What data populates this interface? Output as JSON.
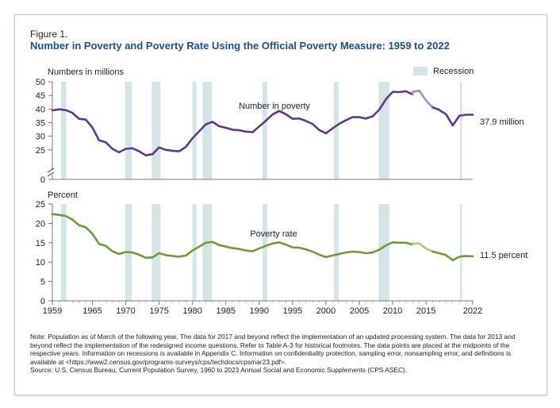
{
  "figure_label": "Figure 1.",
  "title": "Number in Poverty and Poverty Rate Using the Official Poverty Measure: 1959 to 2022",
  "legend": {
    "recession_label": "Recession",
    "recession_color": "#d5e4e6"
  },
  "notes": [
    "Note: Population as of March of the following year. The data for 2017 and beyond reflect the implementation of an updated processing system. The data for 2013 and beyond reflect the implementation of the redesigned income questions. Refer to Table A-3 for historical footnotes. The data points are placed at the midpoints of the respective years. Information on recessions is available in Appendix C. Information on confidentiality protection, sampling error, nonsampling error, and definitions is available at <https://www2.census.gov/programs-surveys/cps/techdocs/cpsmar23.pdf>.",
    "Source: U.S. Census Bureau, Current Population Survey, 1960 to 2023 Annual Social and Economic Supplements (CPS ASEC)."
  ],
  "chart_data": {
    "type": "line",
    "x_ticks": [
      1959,
      1965,
      1970,
      1975,
      1980,
      1985,
      1990,
      1995,
      2000,
      2005,
      2010,
      2015,
      2022
    ],
    "x_range": [
      1959,
      2022
    ],
    "recessions": [
      [
        1960.3,
        1961.1
      ],
      [
        1969.9,
        1970.9
      ],
      [
        1973.9,
        1975.2
      ],
      [
        1980.0,
        1980.6
      ],
      [
        1981.5,
        1982.9
      ],
      [
        1990.5,
        1991.2
      ],
      [
        2001.2,
        2001.9
      ],
      [
        2007.9,
        2009.5
      ],
      [
        2020.1,
        2020.4
      ]
    ],
    "panels": [
      {
        "id": "number",
        "axis_title": "Numbers in millions",
        "series_label": "Number in poverty",
        "end_label": "37.9 million",
        "color": "#5e3a84",
        "light_color": "#a38cc2",
        "y_ticks": [
          0,
          25,
          30,
          35,
          40,
          45,
          50
        ],
        "y_range": [
          20,
          50
        ],
        "axis_break": true,
        "years": [
          1959,
          1960,
          1961,
          1962,
          1963,
          1964,
          1965,
          1966,
          1967,
          1968,
          1969,
          1970,
          1971,
          1972,
          1973,
          1974,
          1975,
          1976,
          1977,
          1978,
          1979,
          1980,
          1981,
          1982,
          1983,
          1984,
          1985,
          1986,
          1987,
          1988,
          1989,
          1990,
          1991,
          1992,
          1993,
          1994,
          1995,
          1996,
          1997,
          1998,
          1999,
          2000,
          2001,
          2002,
          2003,
          2004,
          2005,
          2006,
          2007,
          2008,
          2009,
          2010,
          2011,
          2012,
          2013,
          2013,
          2014,
          2015,
          2016,
          2017,
          2017,
          2018,
          2019,
          2020,
          2021,
          2022
        ],
        "values": [
          39.5,
          39.9,
          39.6,
          38.6,
          36.4,
          36.1,
          33.2,
          28.5,
          27.8,
          25.4,
          24.1,
          25.4,
          25.6,
          24.5,
          23.0,
          23.4,
          25.9,
          25.0,
          24.7,
          24.5,
          26.1,
          29.3,
          31.8,
          34.4,
          35.3,
          33.7,
          33.1,
          32.4,
          32.2,
          31.7,
          31.5,
          33.6,
          35.7,
          38.0,
          39.3,
          38.1,
          36.4,
          36.5,
          35.6,
          34.5,
          32.3,
          31.1,
          32.9,
          34.6,
          35.9,
          37.0,
          37.0,
          36.5,
          37.3,
          39.8,
          43.6,
          46.3,
          46.2,
          46.5,
          45.3,
          46.3,
          46.7,
          43.1,
          40.6,
          39.7,
          39.6,
          38.1,
          34.0,
          37.5,
          37.9,
          37.9
        ],
        "light_segments": [
          [
            54,
            58
          ]
        ]
      },
      {
        "id": "rate",
        "axis_title": "Percent",
        "series_label": "Poverty rate",
        "end_label": "11.5 percent",
        "color": "#6f9a3c",
        "light_color": "#aac886",
        "y_ticks": [
          0,
          5,
          10,
          15,
          20,
          25
        ],
        "y_range": [
          0,
          25
        ],
        "axis_break": false,
        "years": [
          1959,
          1960,
          1961,
          1962,
          1963,
          1964,
          1965,
          1966,
          1967,
          1968,
          1969,
          1970,
          1971,
          1972,
          1973,
          1974,
          1975,
          1976,
          1977,
          1978,
          1979,
          1980,
          1981,
          1982,
          1983,
          1984,
          1985,
          1986,
          1987,
          1988,
          1989,
          1990,
          1991,
          1992,
          1993,
          1994,
          1995,
          1996,
          1997,
          1998,
          1999,
          2000,
          2001,
          2002,
          2003,
          2004,
          2005,
          2006,
          2007,
          2008,
          2009,
          2010,
          2011,
          2012,
          2013,
          2013,
          2014,
          2015,
          2016,
          2017,
          2017,
          2018,
          2019,
          2020,
          2021,
          2022
        ],
        "values": [
          22.4,
          22.2,
          21.9,
          21.0,
          19.5,
          19.0,
          17.3,
          14.7,
          14.2,
          12.8,
          12.1,
          12.6,
          12.5,
          11.9,
          11.1,
          11.2,
          12.3,
          11.8,
          11.6,
          11.4,
          11.7,
          13.0,
          14.0,
          15.0,
          15.2,
          14.4,
          14.0,
          13.6,
          13.4,
          13.0,
          12.8,
          13.5,
          14.2,
          14.8,
          15.1,
          14.5,
          13.8,
          13.7,
          13.3,
          12.7,
          11.9,
          11.3,
          11.7,
          12.1,
          12.5,
          12.7,
          12.6,
          12.3,
          12.5,
          13.2,
          14.3,
          15.1,
          15.0,
          15.0,
          14.5,
          14.8,
          14.8,
          13.5,
          12.7,
          12.3,
          12.3,
          11.8,
          10.5,
          11.4,
          11.6,
          11.5
        ],
        "light_segments": [
          [
            54,
            58
          ]
        ]
      }
    ]
  }
}
